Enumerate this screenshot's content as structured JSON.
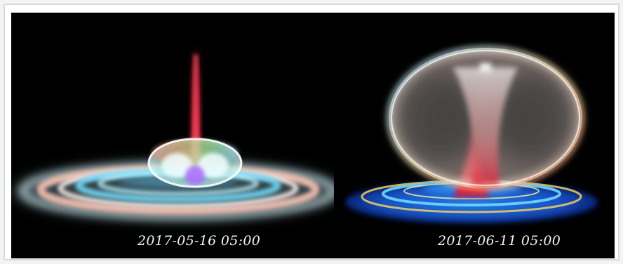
{
  "panels": [
    {
      "caption": "2017-05-16 05:00",
      "visual": "flat-torus-with-ring-disk"
    },
    {
      "caption": "2017-06-11 05:00",
      "visual": "tall-inflated-torus-with-jet"
    }
  ],
  "colors": {
    "background": "#000000",
    "frame": "#ffffff",
    "caption": "#f2f2f2"
  }
}
